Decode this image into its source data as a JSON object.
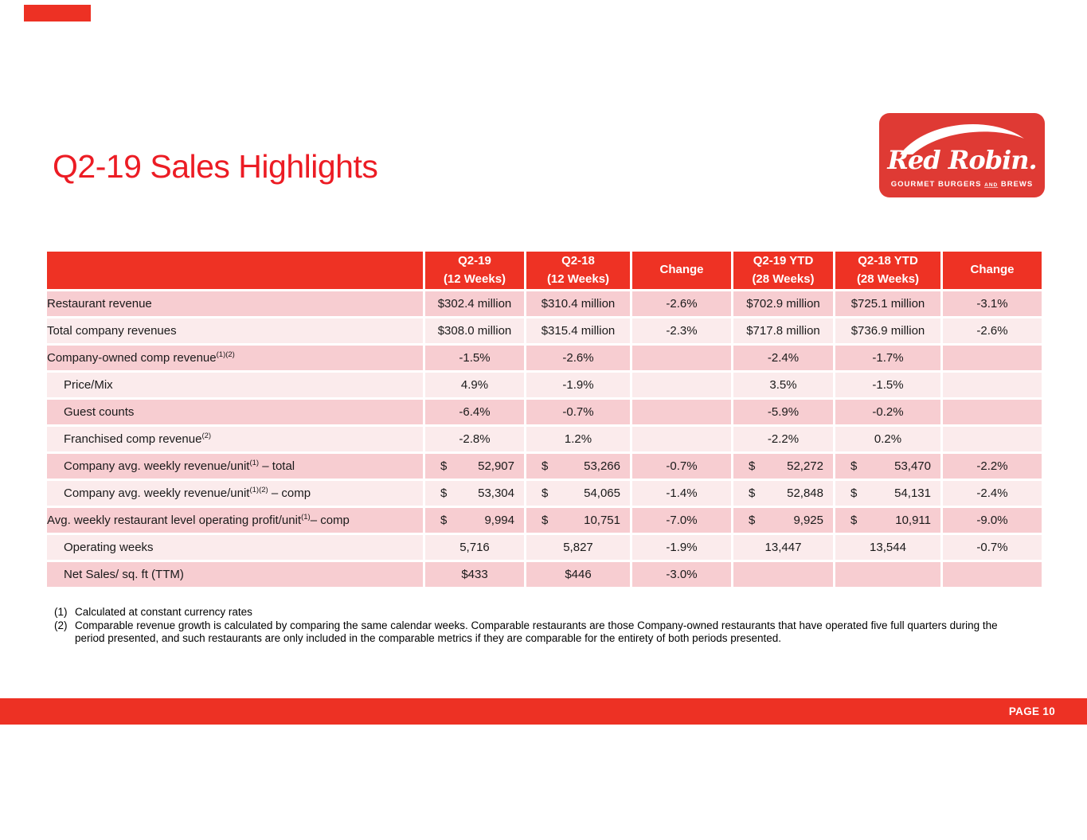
{
  "slide": {
    "title": "Q2-19 Sales Highlights",
    "accent_color": "#ED3124",
    "title_color": "#EC1C24",
    "row_color_dark": "#F7CDD1",
    "row_color_light": "#FBEBEC",
    "header_color": "#EE3224"
  },
  "logo": {
    "wordmark": "Red Robin.",
    "tagline_part1": "GOURMET BURGERS ",
    "tagline_and": "AND",
    "tagline_part2": " BREWS"
  },
  "table": {
    "column_headers": [
      {
        "line1": "Q2-19",
        "line2": "(12 Weeks)"
      },
      {
        "line1": "Q2-18",
        "line2": "(12 Weeks)"
      },
      {
        "line1": "Change",
        "line2": ""
      },
      {
        "line1": "Q2-19 YTD",
        "line2": "(28 Weeks)"
      },
      {
        "line1": "Q2-18 YTD",
        "line2": "(28 Weeks)"
      },
      {
        "line1": "Change",
        "line2": ""
      }
    ],
    "rows": [
      {
        "label": "Restaurant revenue",
        "sup": "",
        "suffix": "",
        "indent": false,
        "cells": [
          "$302.4 million",
          "$310.4 million",
          "-2.6%",
          "$702.9 million",
          "$725.1 million",
          "-3.1%"
        ]
      },
      {
        "label": "Total company revenues",
        "sup": "",
        "suffix": "",
        "indent": false,
        "cells": [
          "$308.0 million",
          "$315.4 million",
          "-2.3%",
          "$717.8 million",
          "$736.9 million",
          "-2.6%"
        ]
      },
      {
        "label": "Company-owned comp revenue",
        "sup": "(1)(2)",
        "suffix": "",
        "indent": false,
        "cells": [
          "-1.5%",
          "-2.6%",
          "",
          "-2.4%",
          "-1.7%",
          ""
        ]
      },
      {
        "label": "Price/Mix",
        "sup": "",
        "suffix": "",
        "indent": true,
        "cells": [
          "4.9%",
          "-1.9%",
          "",
          "3.5%",
          "-1.5%",
          ""
        ]
      },
      {
        "label": "Guest counts",
        "sup": "",
        "suffix": "",
        "indent": true,
        "cells": [
          "-6.4%",
          "-0.7%",
          "",
          "-5.9%",
          "-0.2%",
          ""
        ]
      },
      {
        "label": "Franchised comp revenue",
        "sup": "(2)",
        "suffix": "",
        "indent": true,
        "cells": [
          "-2.8%",
          "1.2%",
          "",
          "-2.2%",
          "0.2%",
          ""
        ]
      },
      {
        "label": "Company avg. weekly revenue/unit",
        "sup": "(1)",
        "suffix": " – total",
        "indent": true,
        "cells": [
          {
            "d": "$",
            "v": "52,907"
          },
          {
            "d": "$",
            "v": "53,266"
          },
          "-0.7%",
          {
            "d": "$",
            "v": "52,272"
          },
          {
            "d": "$",
            "v": "53,470"
          },
          "-2.2%"
        ]
      },
      {
        "label": "Company avg. weekly revenue/unit",
        "sup": "(1)(2)",
        "suffix": " – comp",
        "indent": true,
        "cells": [
          {
            "d": "$",
            "v": "53,304"
          },
          {
            "d": "$",
            "v": "54,065"
          },
          "-1.4%",
          {
            "d": "$",
            "v": "52,848"
          },
          {
            "d": "$",
            "v": "54,131"
          },
          "-2.4%"
        ]
      },
      {
        "label": "Avg. weekly restaurant level operating profit/unit",
        "sup": "(1)",
        "suffix": "– comp",
        "indent": false,
        "cells": [
          {
            "d": "$",
            "v": "9,994"
          },
          {
            "d": "$",
            "v": "10,751"
          },
          "-7.0%",
          {
            "d": "$",
            "v": "9,925"
          },
          {
            "d": "$",
            "v": "10,911"
          },
          "-9.0%"
        ]
      },
      {
        "label": "Operating weeks",
        "sup": "",
        "suffix": "",
        "indent": true,
        "cells": [
          "5,716",
          "5,827",
          "-1.9%",
          "13,447",
          "13,544",
          "-0.7%"
        ]
      },
      {
        "label": "Net Sales/ sq. ft (TTM)",
        "sup": "",
        "suffix": "",
        "indent": true,
        "cells": [
          "$433",
          "$446",
          "-3.0%",
          "",
          "",
          ""
        ]
      }
    ]
  },
  "footnotes": [
    {
      "num": "(1)",
      "text": "Calculated at constant currency rates"
    },
    {
      "num": "(2)",
      "text": "Comparable revenue growth is calculated by comparing the same calendar weeks. Comparable restaurants are those Company-owned restaurants that have operated five full quarters during the period presented, and such restaurants are only included in the comparable metrics if they are comparable for the entirety of both periods presented."
    }
  ],
  "footer": {
    "page_label": "PAGE 10"
  }
}
